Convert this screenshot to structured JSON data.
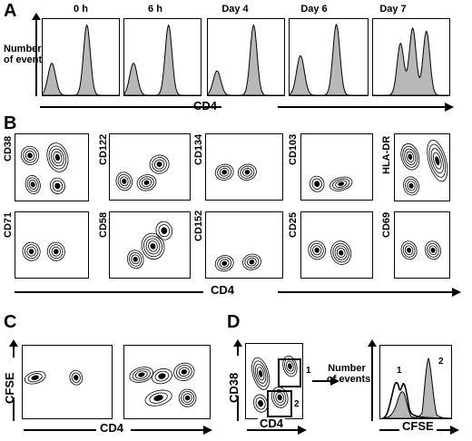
{
  "panels": {
    "A": {
      "letter": "A",
      "timepoints": [
        "0 h",
        "6 h",
        "Day 4",
        "Day 6",
        "Day 7"
      ],
      "y_label_line1": "Number",
      "y_label_line2": "of events",
      "x_label": "CD4"
    },
    "B": {
      "letter": "B",
      "markers_row1": [
        "CD38",
        "CD122",
        "CD134",
        "CD103",
        "HLA-DR"
      ],
      "markers_row2": [
        "CD71",
        "CD58",
        "CD152",
        "CD25",
        "CD69"
      ],
      "x_label": "CD4"
    },
    "C": {
      "letter": "C",
      "y_label": "CFSE",
      "x_label": "CD4"
    },
    "D": {
      "letter": "D",
      "dot_y_label": "CD38",
      "dot_x_label": "CD4",
      "gate_1": "1",
      "gate_2": "2",
      "hist_y_label_line1": "Number",
      "hist_y_label_line2": "of events",
      "hist_x_label": "CFSE",
      "peak_1": "1",
      "peak_2": "2"
    }
  },
  "colors": {
    "fill": "#b8b8b8",
    "contour": "#000000"
  }
}
